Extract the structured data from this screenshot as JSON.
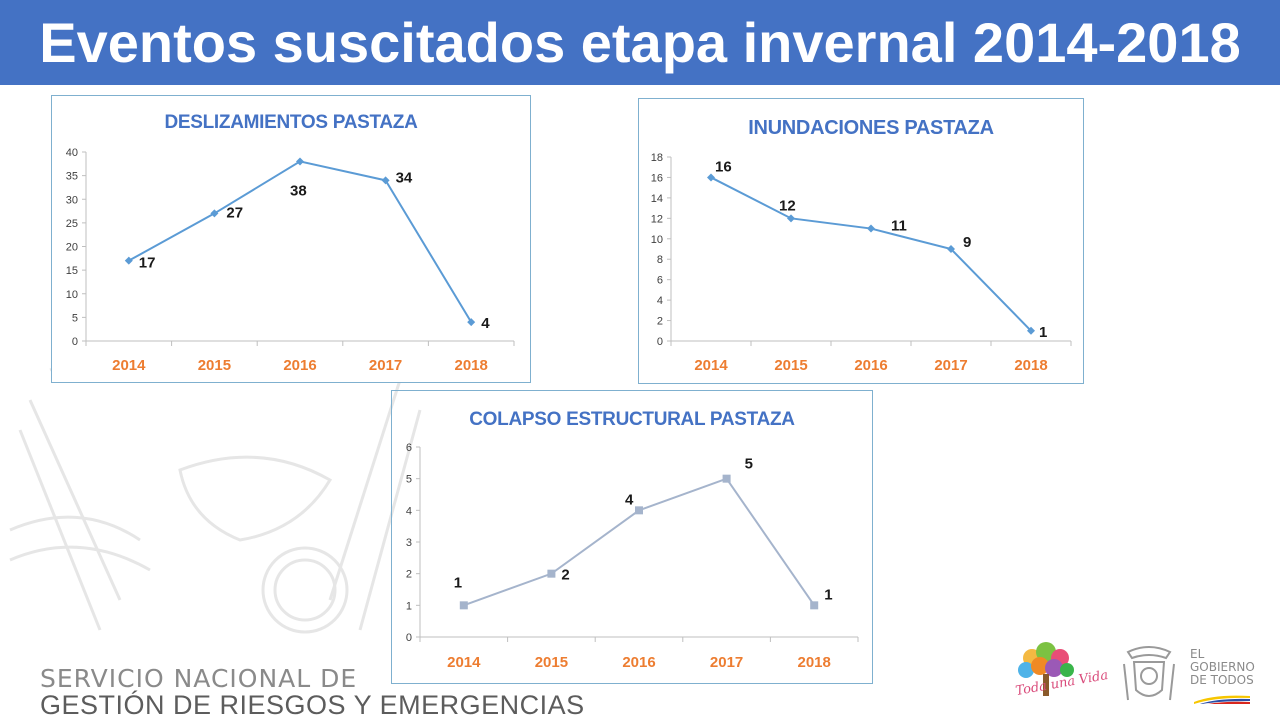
{
  "header": {
    "title": "Eventos suscitados etapa invernal 2014-2018"
  },
  "footer": {
    "line1": "SERVICIO NACIONAL DE",
    "line2": "GESTIÓN DE RIESGOS Y EMERGENCIAS",
    "logo_vida_text": "Toda una Vida",
    "logo_gob_line1": "EL",
    "logo_gob_line2": "GOBIERNO",
    "logo_gob_line3": "DE TODOS"
  },
  "colors": {
    "header_bg": "#4472c4",
    "title_text": "#4472c4",
    "line_blue": "#5b9bd5",
    "line_gray": "#a5b4cc",
    "x_labels": "#ed7d31"
  },
  "chart_data": [
    {
      "id": "deslizamientos",
      "type": "line",
      "title": "DESLIZAMIENTOS PASTAZA",
      "categories": [
        "2014",
        "2015",
        "2016",
        "2017",
        "2018"
      ],
      "values": [
        17,
        27,
        38,
        34,
        4
      ],
      "ylim": [
        0,
        40
      ],
      "yticks": [
        0,
        5,
        10,
        15,
        20,
        25,
        30,
        35,
        40
      ],
      "marker": "diamond",
      "line_color": "#5b9bd5",
      "grid": false
    },
    {
      "id": "inundaciones",
      "type": "line",
      "title": "INUNDACIONES PASTAZA",
      "categories": [
        "2014",
        "2015",
        "2016",
        "2017",
        "2018"
      ],
      "values": [
        16,
        12,
        11,
        9,
        1
      ],
      "ylim": [
        0,
        18
      ],
      "yticks": [
        0,
        2,
        4,
        6,
        8,
        10,
        12,
        14,
        16,
        18
      ],
      "marker": "diamond",
      "line_color": "#5b9bd5",
      "grid": false
    },
    {
      "id": "colapso",
      "type": "line",
      "title": "COLAPSO ESTRUCTURAL PASTAZA",
      "categories": [
        "2014",
        "2015",
        "2016",
        "2017",
        "2018"
      ],
      "values": [
        1,
        2,
        4,
        5,
        1
      ],
      "ylim": [
        0,
        6
      ],
      "yticks": [
        0,
        1,
        2,
        3,
        4,
        5,
        6
      ],
      "marker": "square",
      "line_color": "#a5b4cc",
      "grid": false
    }
  ]
}
